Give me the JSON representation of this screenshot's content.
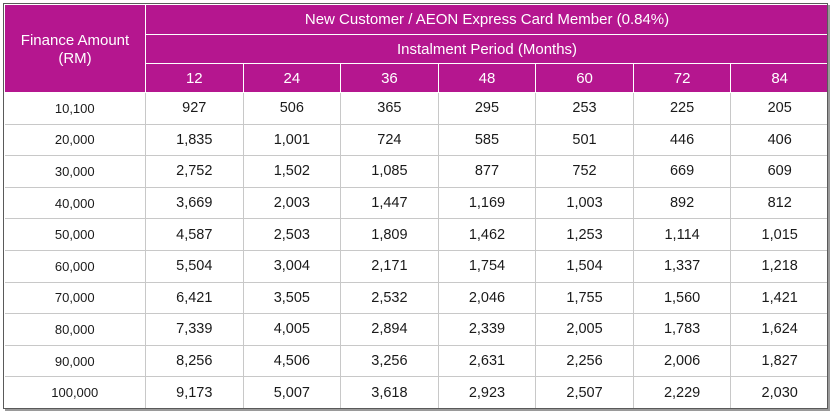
{
  "table": {
    "corner_line1": "Finance Amount",
    "corner_line2": "(RM)",
    "group_title": "New Customer / AEON Express Card Member (0.84%)",
    "sub_title": "Instalment Period (Months)",
    "periods": [
      "12",
      "24",
      "36",
      "48",
      "60",
      "72",
      "84"
    ],
    "rows": [
      {
        "amount": "10,100",
        "values": [
          "927",
          "506",
          "365",
          "295",
          "253",
          "225",
          "205"
        ]
      },
      {
        "amount": "20,000",
        "values": [
          "1,835",
          "1,001",
          "724",
          "585",
          "501",
          "446",
          "406"
        ]
      },
      {
        "amount": "30,000",
        "values": [
          "2,752",
          "1,502",
          "1,085",
          "877",
          "752",
          "669",
          "609"
        ]
      },
      {
        "amount": "40,000",
        "values": [
          "3,669",
          "2,003",
          "1,447",
          "1,169",
          "1,003",
          "892",
          "812"
        ]
      },
      {
        "amount": "50,000",
        "values": [
          "4,587",
          "2,503",
          "1,809",
          "1,462",
          "1,253",
          "1,114",
          "1,015"
        ]
      },
      {
        "amount": "60,000",
        "values": [
          "5,504",
          "3,004",
          "2,171",
          "1,754",
          "1,504",
          "1,337",
          "1,218"
        ]
      },
      {
        "amount": "70,000",
        "values": [
          "6,421",
          "3,505",
          "2,532",
          "2,046",
          "1,755",
          "1,560",
          "1,421"
        ]
      },
      {
        "amount": "80,000",
        "values": [
          "7,339",
          "4,005",
          "2,894",
          "2,339",
          "2,005",
          "1,783",
          "1,624"
        ]
      },
      {
        "amount": "90,000",
        "values": [
          "8,256",
          "4,506",
          "3,256",
          "2,631",
          "2,256",
          "2,006",
          "1,827"
        ]
      },
      {
        "amount": "100,000",
        "values": [
          "9,173",
          "5,007",
          "3,618",
          "2,923",
          "2,507",
          "2,229",
          "2,030"
        ]
      }
    ]
  },
  "colors": {
    "header_bg": "#b5168f",
    "header_text": "#ffffff",
    "grid_line": "#c8c8c8"
  }
}
